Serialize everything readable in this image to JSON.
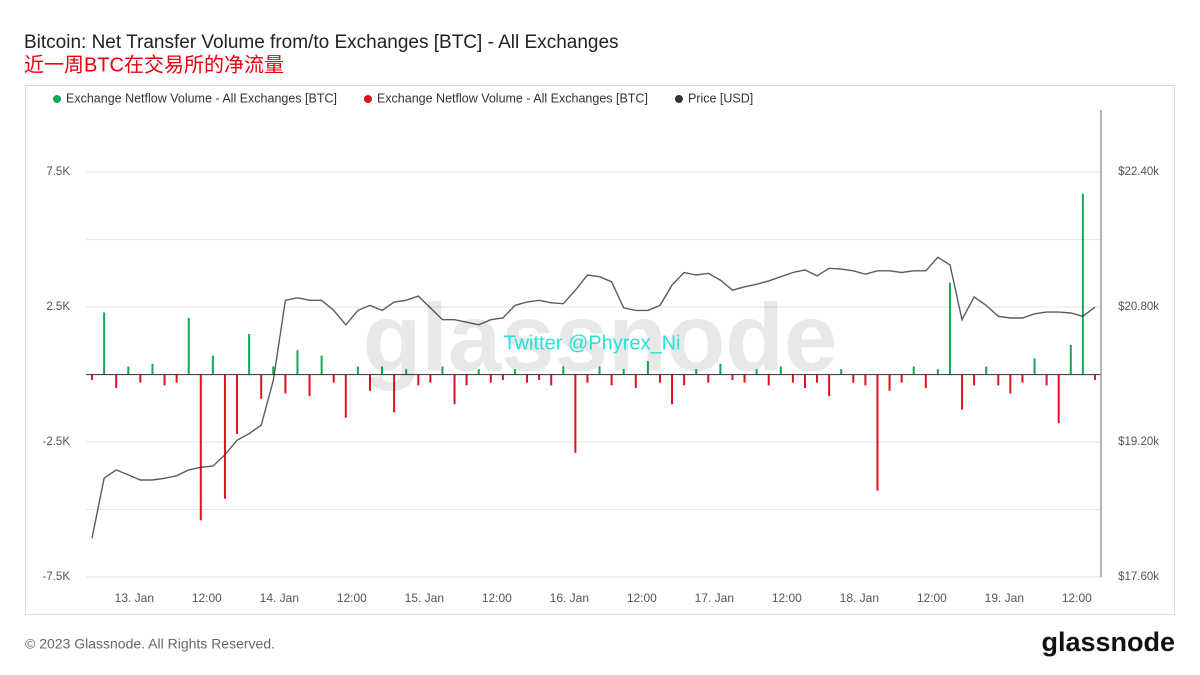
{
  "chart_data": {
    "type": "bar",
    "title": "Bitcoin: Net Transfer Volume from/to Exchanges [BTC] - All Exchanges",
    "subtitle": "近一周BTC在交易所的净流量",
    "watermark": "glassnode",
    "annotation": "Twitter @Phyrex_Ni",
    "x": [
      -7,
      -5,
      -3,
      -1,
      1,
      3,
      5,
      7,
      9,
      11,
      13,
      15,
      17,
      19,
      21,
      23,
      25,
      27,
      29,
      31,
      33,
      35,
      37,
      39,
      41,
      43,
      45,
      47,
      49,
      51,
      53,
      55,
      57,
      59,
      61,
      63,
      65,
      67,
      69,
      71,
      73,
      75,
      77,
      79,
      81,
      83,
      85,
      87,
      89,
      91,
      93,
      95,
      97,
      99,
      101,
      103,
      105,
      107,
      109,
      111,
      113,
      115,
      117,
      119,
      121,
      123,
      125,
      127,
      129,
      131,
      133,
      135,
      137,
      139,
      141,
      143,
      145,
      147,
      149,
      151,
      153,
      155,
      157,
      159
    ],
    "xlim": [
      -8,
      160
    ],
    "xticks": [
      {
        "value": 0,
        "label": "13. Jan"
      },
      {
        "value": 12,
        "label": "12:00"
      },
      {
        "value": 24,
        "label": "14. Jan"
      },
      {
        "value": 36,
        "label": "12:00"
      },
      {
        "value": 48,
        "label": "15. Jan"
      },
      {
        "value": 60,
        "label": "12:00"
      },
      {
        "value": 72,
        "label": "16. Jan"
      },
      {
        "value": 84,
        "label": "12:00"
      },
      {
        "value": 96,
        "label": "17. Jan"
      },
      {
        "value": 108,
        "label": "12:00"
      },
      {
        "value": 120,
        "label": "18. Jan"
      },
      {
        "value": 132,
        "label": "12:00"
      },
      {
        "value": 144,
        "label": "19. Jan"
      },
      {
        "value": 156,
        "label": "12:00"
      }
    ],
    "ylim": [
      -7500,
      9800
    ],
    "yticks": [
      {
        "value": 7500,
        "label": "7.5K"
      },
      {
        "value": 5000,
        "label": null
      },
      {
        "value": 2500,
        "label": "2.5K"
      },
      {
        "value": 0,
        "label": null
      },
      {
        "value": -2500,
        "label": "-2.5K"
      },
      {
        "value": -5000,
        "label": null
      },
      {
        "value": -7500,
        "label": "-7.5K"
      }
    ],
    "y2lim": [
      17600,
      23136
    ],
    "y2ticks": [
      {
        "value": 22400,
        "label": "$22.40k"
      },
      {
        "value": 20800,
        "label": "$20.80k"
      },
      {
        "value": 19200,
        "label": "$19.20k"
      },
      {
        "value": 17600,
        "label": "$17.60k"
      }
    ],
    "grid": true,
    "series": [
      {
        "name": "Exchange Netflow Volume - All Exchanges [BTC]",
        "color": "#0fa958",
        "type": "bar",
        "values": [
          null,
          2300,
          null,
          300,
          null,
          400,
          null,
          null,
          2100,
          null,
          700,
          null,
          null,
          1500,
          null,
          300,
          null,
          900,
          null,
          700,
          null,
          null,
          300,
          null,
          300,
          null,
          200,
          null,
          null,
          300,
          null,
          null,
          200,
          null,
          null,
          200,
          null,
          null,
          null,
          300,
          null,
          null,
          300,
          null,
          200,
          null,
          500,
          null,
          null,
          null,
          200,
          null,
          400,
          null,
          null,
          200,
          null,
          300,
          null,
          null,
          null,
          null,
          200,
          null,
          null,
          null,
          null,
          null,
          300,
          null,
          200,
          3400,
          null,
          null,
          300,
          null,
          null,
          null,
          600,
          null,
          null,
          1100,
          6700,
          null
        ]
      },
      {
        "name": "Exchange Netflow Volume - All Exchanges [BTC]",
        "color": "#e0101e",
        "type": "bar",
        "values": [
          -200,
          null,
          -500,
          null,
          -300,
          null,
          -400,
          -300,
          null,
          -5400,
          null,
          -4600,
          -2200,
          null,
          -900,
          null,
          -700,
          null,
          -800,
          null,
          -300,
          -1600,
          null,
          -600,
          null,
          -1400,
          null,
          -400,
          -300,
          null,
          -1100,
          -400,
          null,
          -300,
          -200,
          null,
          -300,
          -200,
          -400,
          null,
          -2900,
          -300,
          null,
          -400,
          null,
          -500,
          null,
          -300,
          -1100,
          -400,
          null,
          -300,
          null,
          -200,
          -300,
          null,
          -400,
          null,
          -300,
          -500,
          -300,
          -800,
          null,
          -300,
          -400,
          -4300,
          -600,
          -300,
          null,
          -500,
          null,
          null,
          -1300,
          -400,
          null,
          -400,
          -700,
          -300,
          null,
          -400,
          -1800,
          null,
          null,
          -200
        ]
      },
      {
        "name": "Price [USD]",
        "color": "#333333",
        "type": "line",
        "axis": "y2",
        "values": [
          18060,
          18770,
          18870,
          18810,
          18750,
          18750,
          18770,
          18800,
          18870,
          18900,
          18915,
          19050,
          19220,
          19300,
          19400,
          19930,
          20880,
          20910,
          20880,
          20880,
          20760,
          20590,
          20760,
          20820,
          20760,
          20860,
          20880,
          20930,
          20790,
          20650,
          20650,
          20620,
          20590,
          20650,
          20670,
          20820,
          20860,
          20880,
          20850,
          20840,
          21000,
          21180,
          21160,
          21100,
          20790,
          20760,
          20760,
          20820,
          21060,
          21210,
          21180,
          21200,
          21120,
          21000,
          21040,
          21070,
          21110,
          21160,
          21210,
          21240,
          21170,
          21260,
          21250,
          21230,
          21190,
          21230,
          21230,
          21210,
          21230,
          21230,
          21390,
          21300,
          20650,
          20920,
          20820,
          20690,
          20670,
          20670,
          20720,
          20740,
          20740,
          20730,
          20690,
          20800
        ]
      }
    ]
  },
  "footer": {
    "copyright": "© 2023 Glassnode. All Rights Reserved.",
    "logo": "glassnode"
  }
}
